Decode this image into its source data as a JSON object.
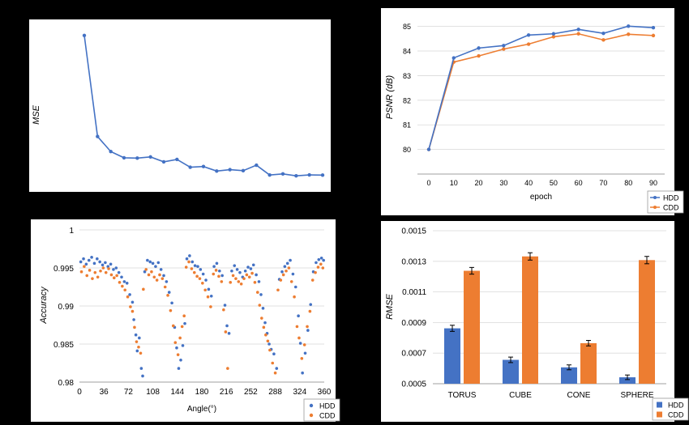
{
  "colors": {
    "hdd": "#4472C4",
    "cdd": "#ED7D31",
    "axis": "#7f7f7f",
    "grid": "#d9d9d9"
  },
  "chart_data": [
    {
      "id": "mse",
      "type": "line",
      "title": "",
      "xlabel": "",
      "ylabel": "MSE",
      "grid": false,
      "series": [
        {
          "values": [
            0.112,
            0.0275,
            0.0149,
            0.0097,
            0.0094,
            0.0104,
            0.0063,
            0.0083,
            0.0018,
            0.0024,
            -0.0014,
            -0.0002,
            -0.0011,
            0.0035,
            -0.0047,
            -0.0038,
            -0.0054,
            -0.0046,
            -0.0048
          ]
        }
      ],
      "ylim": [
        -0.01,
        0.12
      ]
    },
    {
      "id": "psnr",
      "type": "line",
      "title": "",
      "xlabel": "epoch",
      "ylabel": "PSNR (dB)",
      "x": [
        0,
        10,
        20,
        30,
        40,
        50,
        60,
        70,
        80,
        90
      ],
      "yticks": [
        80,
        81,
        82,
        83,
        84,
        85
      ],
      "ylim": [
        79,
        85.35
      ],
      "grid": true,
      "legend": "bottom-right",
      "series": [
        {
          "name": "HDD",
          "values": [
            80.0,
            83.72,
            84.12,
            84.22,
            84.65,
            84.7,
            84.88,
            84.72,
            85.01,
            84.95
          ]
        },
        {
          "name": "CDD",
          "values": [
            80.0,
            83.55,
            83.8,
            84.08,
            84.28,
            84.58,
            84.7,
            84.45,
            84.68,
            84.63
          ]
        }
      ]
    },
    {
      "id": "accuracy",
      "type": "scatter",
      "title": "",
      "xlabel": "Angle(°)",
      "ylabel": "Accuracy",
      "xticks": [
        0,
        36,
        72,
        108,
        144,
        180,
        216,
        252,
        288,
        324,
        360
      ],
      "yticks": [
        0.98,
        0.985,
        0.99,
        0.995,
        1
      ],
      "ytick_labels": [
        "0.98",
        "0.985",
        "0.99",
        "0.995",
        "1"
      ],
      "xlim": [
        0,
        360
      ],
      "ylim": [
        0.98,
        1.0
      ],
      "grid": true,
      "legend": "bottom-right",
      "series": [
        {
          "name": "HDD",
          "points": [
            [
              2,
              0.9958
            ],
            [
              6,
              0.9962
            ],
            [
              10,
              0.9955
            ],
            [
              14,
              0.996
            ],
            [
              18,
              0.9964
            ],
            [
              22,
              0.9956
            ],
            [
              26,
              0.9962
            ],
            [
              30,
              0.9958
            ],
            [
              34,
              0.9954
            ],
            [
              38,
              0.9957
            ],
            [
              42,
              0.9952
            ],
            [
              46,
              0.9955
            ],
            [
              50,
              0.9948
            ],
            [
              54,
              0.995
            ],
            [
              58,
              0.9944
            ],
            [
              62,
              0.9938
            ],
            [
              66,
              0.9932
            ],
            [
              70,
              0.993
            ],
            [
              74,
              0.9915
            ],
            [
              78,
              0.9905
            ],
            [
              80,
              0.9882
            ],
            [
              83,
              0.9862
            ],
            [
              85,
              0.9841
            ],
            [
              88,
              0.9858
            ],
            [
              91,
              0.9818
            ],
            [
              93,
              0.9808
            ],
            [
              96,
              0.9945
            ],
            [
              100,
              0.996
            ],
            [
              104,
              0.9958
            ],
            [
              108,
              0.9956
            ],
            [
              112,
              0.9952
            ],
            [
              116,
              0.9957
            ],
            [
              120,
              0.9948
            ],
            [
              124,
              0.994
            ],
            [
              128,
              0.9932
            ],
            [
              132,
              0.9918
            ],
            [
              136,
              0.9904
            ],
            [
              140,
              0.9872
            ],
            [
              143,
              0.9845
            ],
            [
              146,
              0.9818
            ],
            [
              149,
              0.9829
            ],
            [
              152,
              0.9848
            ],
            [
              155,
              0.9877
            ],
            [
              158,
              0.9962
            ],
            [
              162,
              0.9966
            ],
            [
              166,
              0.9958
            ],
            [
              170,
              0.9953
            ],
            [
              174,
              0.9952
            ],
            [
              178,
              0.9948
            ],
            [
              182,
              0.9942
            ],
            [
              186,
              0.9934
            ],
            [
              190,
              0.9922
            ],
            [
              194,
              0.9913
            ],
            [
              198,
              0.9952
            ],
            [
              202,
              0.9956
            ],
            [
              206,
              0.9946
            ],
            [
              210,
              0.994
            ],
            [
              214,
              0.9901
            ],
            [
              217,
              0.9874
            ],
            [
              220,
              0.9864
            ],
            [
              224,
              0.9946
            ],
            [
              228,
              0.9953
            ],
            [
              232,
              0.9948
            ],
            [
              236,
              0.9944
            ],
            [
              240,
              0.9938
            ],
            [
              244,
              0.9946
            ],
            [
              248,
              0.9951
            ],
            [
              252,
              0.9949
            ],
            [
              256,
              0.9954
            ],
            [
              260,
              0.9941
            ],
            [
              264,
              0.9932
            ],
            [
              267,
              0.9915
            ],
            [
              270,
              0.9897
            ],
            [
              273,
              0.9878
            ],
            [
              276,
              0.9864
            ],
            [
              279,
              0.985
            ],
            [
              282,
              0.9843
            ],
            [
              286,
              0.9837
            ],
            [
              290,
              0.9818
            ],
            [
              294,
              0.9935
            ],
            [
              298,
              0.9945
            ],
            [
              302,
              0.9952
            ],
            [
              306,
              0.9956
            ],
            [
              310,
              0.996
            ],
            [
              314,
              0.9942
            ],
            [
              318,
              0.9925
            ],
            [
              322,
              0.9887
            ],
            [
              325,
              0.9851
            ],
            [
              328,
              0.9812
            ],
            [
              332,
              0.9838
            ],
            [
              336,
              0.9868
            ],
            [
              340,
              0.9902
            ],
            [
              344,
              0.9945
            ],
            [
              348,
              0.9957
            ],
            [
              352,
              0.9961
            ],
            [
              356,
              0.9963
            ],
            [
              359,
              0.996
            ]
          ]
        },
        {
          "name": "CDD",
          "points": [
            [
              3,
              0.9945
            ],
            [
              7,
              0.9952
            ],
            [
              11,
              0.994
            ],
            [
              15,
              0.9947
            ],
            [
              19,
              0.9936
            ],
            [
              23,
              0.9944
            ],
            [
              27,
              0.9938
            ],
            [
              31,
              0.9946
            ],
            [
              35,
              0.995
            ],
            [
              39,
              0.9944
            ],
            [
              43,
              0.9949
            ],
            [
              47,
              0.9941
            ],
            [
              51,
              0.9937
            ],
            [
              55,
              0.994
            ],
            [
              59,
              0.9931
            ],
            [
              63,
              0.9926
            ],
            [
              67,
              0.9921
            ],
            [
              71,
              0.9912
            ],
            [
              75,
              0.9899
            ],
            [
              78,
              0.9893
            ],
            [
              81,
              0.9872
            ],
            [
              84,
              0.9853
            ],
            [
              87,
              0.9846
            ],
            [
              90,
              0.9838
            ],
            [
              94,
              0.9922
            ],
            [
              98,
              0.9948
            ],
            [
              102,
              0.9941
            ],
            [
              106,
              0.9945
            ],
            [
              110,
              0.9938
            ],
            [
              114,
              0.9934
            ],
            [
              118,
              0.9941
            ],
            [
              122,
              0.9936
            ],
            [
              126,
              0.9925
            ],
            [
              130,
              0.9914
            ],
            [
              134,
              0.9894
            ],
            [
              138,
              0.9874
            ],
            [
              141,
              0.9852
            ],
            [
              145,
              0.9836
            ],
            [
              148,
              0.9858
            ],
            [
              151,
              0.9873
            ],
            [
              154,
              0.9887
            ],
            [
              157,
              0.9951
            ],
            [
              161,
              0.9958
            ],
            [
              165,
              0.9949
            ],
            [
              169,
              0.9944
            ],
            [
              173,
              0.9939
            ],
            [
              177,
              0.9936
            ],
            [
              181,
              0.993
            ],
            [
              185,
              0.9921
            ],
            [
              189,
              0.9912
            ],
            [
              193,
              0.9899
            ],
            [
              197,
              0.9942
            ],
            [
              201,
              0.9947
            ],
            [
              205,
              0.9939
            ],
            [
              209,
              0.9932
            ],
            [
              212,
              0.9895
            ],
            [
              215,
              0.9866
            ],
            [
              218,
              0.9818
            ],
            [
              222,
              0.9931
            ],
            [
              226,
              0.994
            ],
            [
              230,
              0.9936
            ],
            [
              234,
              0.9932
            ],
            [
              238,
              0.9929
            ],
            [
              242,
              0.9936
            ],
            [
              246,
              0.9941
            ],
            [
              250,
              0.9938
            ],
            [
              254,
              0.9943
            ],
            [
              258,
              0.9931
            ],
            [
              262,
              0.9918
            ],
            [
              265,
              0.9901
            ],
            [
              268,
              0.9884
            ],
            [
              271,
              0.9872
            ],
            [
              274,
              0.9862
            ],
            [
              277,
              0.9854
            ],
            [
              280,
              0.9842
            ],
            [
              284,
              0.9825
            ],
            [
              288,
              0.9812
            ],
            [
              292,
              0.9921
            ],
            [
              296,
              0.9934
            ],
            [
              300,
              0.9941
            ],
            [
              304,
              0.9946
            ],
            [
              308,
              0.995
            ],
            [
              312,
              0.9932
            ],
            [
              316,
              0.9912
            ],
            [
              320,
              0.9873
            ],
            [
              323,
              0.9858
            ],
            [
              327,
              0.9831
            ],
            [
              331,
              0.9849
            ],
            [
              335,
              0.9873
            ],
            [
              339,
              0.9893
            ],
            [
              343,
              0.9934
            ],
            [
              347,
              0.9944
            ],
            [
              351,
              0.9951
            ],
            [
              355,
              0.9955
            ],
            [
              358,
              0.995
            ]
          ]
        }
      ]
    },
    {
      "id": "rmse",
      "type": "bar",
      "title": "",
      "xlabel": "",
      "ylabel": "RMSE",
      "categories": [
        "TORUS",
        "CUBE",
        "CONE",
        "SPHERE"
      ],
      "yticks": [
        0.0005,
        0.0007,
        0.0009,
        0.0011,
        0.0013,
        0.0015
      ],
      "ytick_labels": [
        "0.0005",
        "0.0007",
        "0.0009",
        "0.0011",
        "0.0013",
        "0.0015"
      ],
      "ylim": [
        0.0005,
        0.0015
      ],
      "grid": true,
      "legend": "bottom-right",
      "series": [
        {
          "name": "HDD",
          "values": [
            0.000862,
            0.000656,
            0.000607,
            0.000542
          ],
          "errors": [
            2e-05,
            1.8e-05,
            1.6e-05,
            1.5e-05
          ]
        },
        {
          "name": "CDD",
          "values": [
            0.001238,
            0.001332,
            0.000765,
            0.001308
          ],
          "errors": [
            2.2e-05,
            2.4e-05,
            1.8e-05,
            2.4e-05
          ]
        }
      ]
    }
  ]
}
